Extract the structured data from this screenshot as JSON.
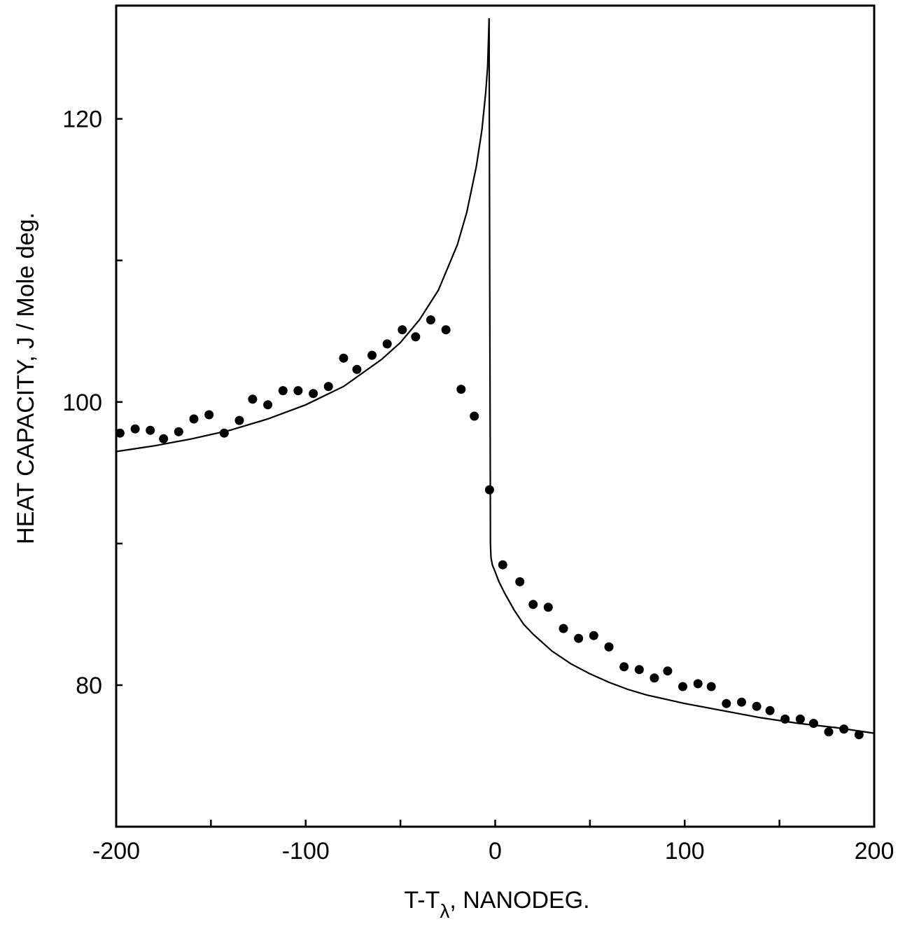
{
  "chart_data": {
    "type": "scatter",
    "title": "",
    "xlabel": {
      "main": "T-T",
      "subscript": "λ",
      "suffix": ",  NANODEG."
    },
    "ylabel": "HEAT CAPACITY, J / Mole deg.",
    "xlim": [
      -200,
      200
    ],
    "ylim": [
      70,
      128
    ],
    "x_ticks": [
      -200,
      -150,
      -100,
      -50,
      0,
      50,
      100,
      150,
      200
    ],
    "x_tick_labels": [
      "-200",
      "",
      "-100",
      "",
      "0",
      "",
      "100",
      "",
      "200"
    ],
    "y_ticks": [
      80,
      90,
      100,
      110,
      120
    ],
    "y_tick_labels": [
      "80",
      "",
      "100",
      "",
      "120"
    ],
    "grid": false,
    "series": [
      {
        "kind": "points",
        "x": [
          -198,
          -190,
          -182,
          -175,
          -167,
          -159,
          -151,
          -143,
          -135,
          -128,
          -120,
          -112,
          -104,
          -96,
          -88,
          -80,
          -73,
          -65,
          -57,
          -49,
          -42,
          -34,
          -26,
          -18,
          -11,
          -3,
          4,
          13,
          20,
          28,
          36,
          44,
          52,
          60,
          68,
          76,
          84,
          91,
          99,
          107,
          114,
          122,
          130,
          138,
          145,
          153,
          161,
          168,
          176,
          184,
          192
        ],
        "y": [
          97.8,
          98.1,
          98.0,
          97.4,
          97.9,
          98.8,
          99.1,
          97.8,
          98.7,
          100.2,
          99.8,
          100.8,
          100.8,
          100.6,
          101.1,
          103.1,
          102.3,
          103.3,
          104.1,
          105.1,
          104.6,
          105.8,
          105.1,
          100.9,
          99.0,
          93.8,
          88.5,
          87.3,
          85.7,
          85.5,
          84.0,
          83.3,
          83.5,
          82.7,
          81.3,
          81.1,
          80.5,
          81.0,
          79.9,
          80.1,
          79.9,
          78.7,
          78.8,
          78.5,
          78.2,
          77.6,
          77.6,
          77.3,
          76.7,
          76.9,
          76.5
        ]
      },
      {
        "kind": "line",
        "below": {
          "x": [
            -200,
            -180,
            -160,
            -140,
            -120,
            -100,
            -80,
            -60,
            -50,
            -40,
            -30,
            -20,
            -15,
            -10,
            -7,
            -5,
            -4,
            -3.2
          ],
          "y": [
            96.5,
            96.9,
            97.4,
            98.0,
            98.8,
            99.8,
            101.1,
            103.0,
            104.2,
            105.8,
            107.9,
            111.1,
            113.4,
            116.6,
            119.2,
            121.9,
            123.7,
            127.1
          ]
        },
        "above": {
          "x": [
            -3.2,
            -2.9,
            -2.7,
            -2.6,
            -2.5,
            -2.2,
            -1.5,
            0,
            2,
            5,
            10,
            15,
            20,
            30,
            40,
            50,
            60,
            70,
            80,
            90,
            100,
            120,
            140,
            160,
            180,
            200
          ],
          "y": [
            127.1,
            110,
            100,
            95,
            90,
            89.0,
            88.5,
            88.0,
            87.3,
            86.5,
            85.3,
            84.3,
            83.6,
            82.4,
            81.5,
            80.8,
            80.2,
            79.7,
            79.3,
            79.0,
            78.7,
            78.2,
            77.7,
            77.3,
            77.0,
            76.6
          ]
        }
      }
    ]
  }
}
